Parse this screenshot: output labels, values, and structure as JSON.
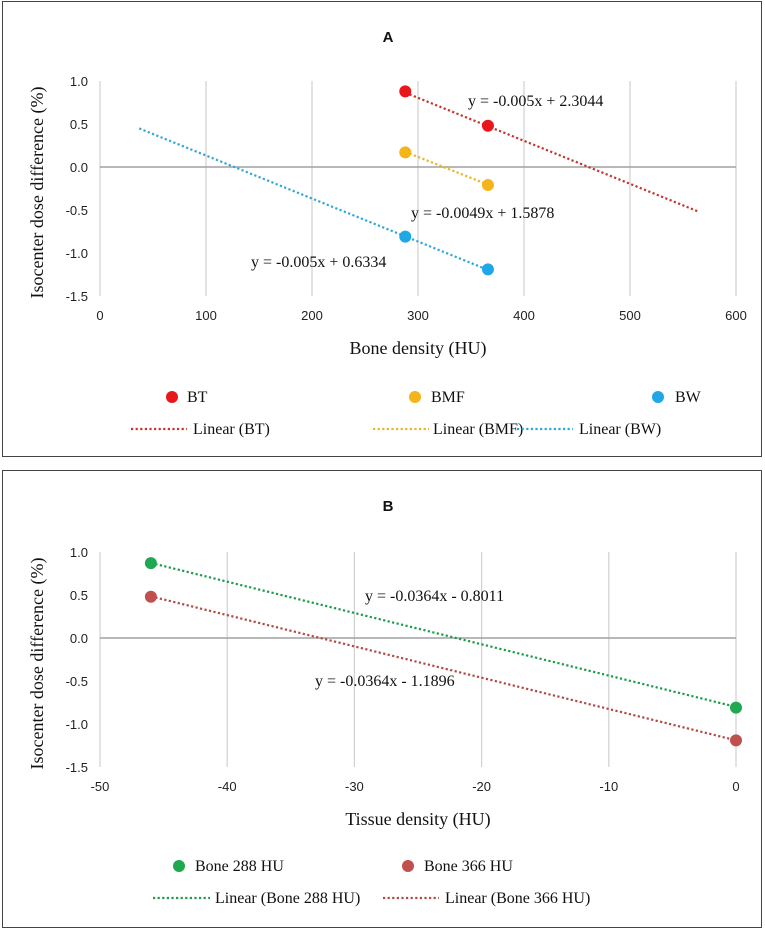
{
  "chart_data": [
    {
      "type": "scatter",
      "title": "A",
      "xlabel": "Bone density (HU)",
      "ylabel": "Isocenter dose difference (%)",
      "xlim": [
        0,
        600
      ],
      "ylim": [
        -1.5,
        1.0
      ],
      "xticks": [
        "0",
        "100",
        "200",
        "300",
        "400",
        "500",
        "600"
      ],
      "yticks": [
        "1.0",
        "0.5",
        "0.0",
        "-0.5",
        "-1.0",
        "-1.5"
      ],
      "grid": true,
      "legend_position": "bottom",
      "series": [
        {
          "name": "BT",
          "color": "#e8171b",
          "points": [
            {
              "x": 288,
              "y": 0.88
            },
            {
              "x": 366,
              "y": 0.48
            }
          ],
          "trend_name": "Linear (BT)",
          "trend_color": "#c8332b",
          "trend_x": [
            288,
            565
          ],
          "slope": -0.005,
          "intercept": 2.3044,
          "equation": "y = -0.005x + 2.3044"
        },
        {
          "name": "BMF",
          "color": "#f4b41a",
          "points": [
            {
              "x": 288,
              "y": 0.17
            },
            {
              "x": 366,
              "y": -0.21
            }
          ],
          "trend_name": "Linear (BMF)",
          "trend_color": "#e8b428",
          "trend_x": [
            288,
            366
          ],
          "slope": -0.0049,
          "intercept": 1.5878,
          "equation": "y = -0.0049x + 1.5878"
        },
        {
          "name": "BW",
          "color": "#1ea8e6",
          "points": [
            {
              "x": 288,
              "y": -0.81
            },
            {
              "x": 366,
              "y": -1.19
            }
          ],
          "trend_name": "Linear (BW)",
          "trend_color": "#2aa9d9",
          "trend_x": [
            37,
            366
          ],
          "slope": -0.005,
          "intercept": 0.6334,
          "equation": "y = -0.005x + 0.6334"
        }
      ]
    },
    {
      "type": "scatter",
      "title": "B",
      "xlabel": "Tissue density (HU)",
      "ylabel": "Isocenter dose difference (%)",
      "xlim": [
        -50,
        0
      ],
      "ylim": [
        -1.5,
        1.0
      ],
      "xticks": [
        "-50",
        "-40",
        "-30",
        "-20",
        "-10",
        "0"
      ],
      "yticks": [
        "1.0",
        "0.5",
        "0.0",
        "-0.5",
        "-1.0",
        "-1.5"
      ],
      "grid": true,
      "legend_position": "bottom",
      "series": [
        {
          "name": "Bone 288 HU",
          "color": "#1fa84f",
          "points": [
            {
              "x": -46,
              "y": 0.87
            },
            {
              "x": 0,
              "y": -0.81
            }
          ],
          "trend_name": "Linear (Bone 288 HU)",
          "trend_color": "#1a9c4a",
          "trend_x": [
            -46,
            0
          ],
          "slope": -0.0364,
          "intercept": -0.8011,
          "equation": "y = -0.0364x - 0.8011"
        },
        {
          "name": "Bone 366 HU",
          "color": "#c0504d",
          "points": [
            {
              "x": -46,
              "y": 0.48
            },
            {
              "x": 0,
              "y": -1.19
            }
          ],
          "trend_name": "Linear (Bone 366 HU)",
          "trend_color": "#b04a45",
          "trend_x": [
            -46,
            0
          ],
          "slope": -0.0364,
          "intercept": -1.1896,
          "equation": "y = -0.0364x - 1.1896"
        }
      ]
    }
  ]
}
